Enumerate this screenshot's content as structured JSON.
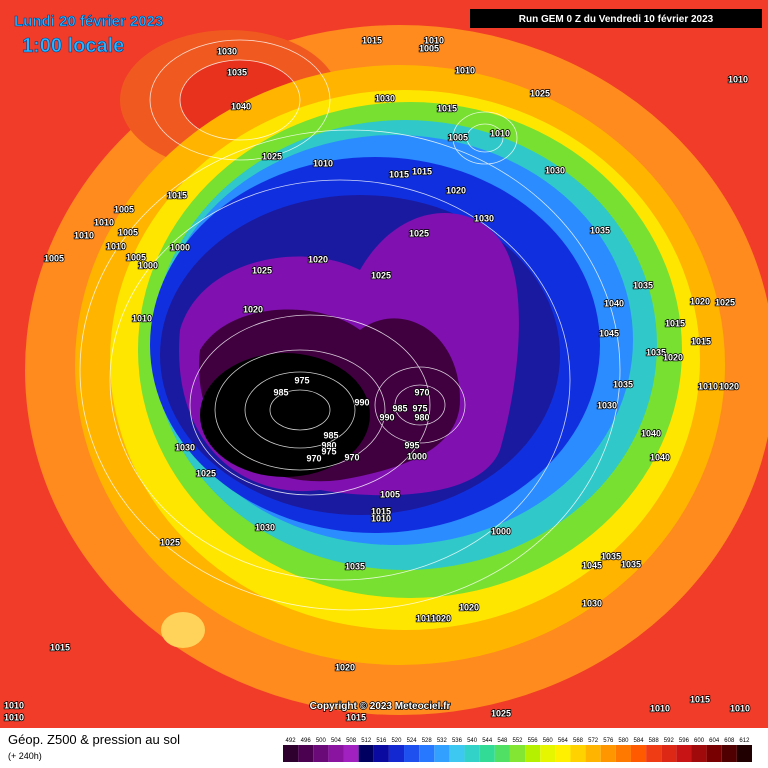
{
  "header": {
    "date": "Lundi 20 février 2023",
    "time": "1:00 locale",
    "run": "Run GEM 0 Z du Vendredi 10 février 2023"
  },
  "footer": {
    "title": "Géop. Z500 & pression au sol",
    "lead": "(+ 240h)",
    "copyright": "Copyright © 2023 Meteociel.fr"
  },
  "scale": {
    "values": [
      492,
      496,
      500,
      504,
      508,
      512,
      516,
      520,
      524,
      528,
      532,
      536,
      540,
      544,
      548,
      552,
      556,
      560,
      564,
      568,
      572,
      576,
      580,
      584,
      588,
      592,
      596,
      600,
      604,
      608,
      612
    ],
    "colors": [
      "#2d002d",
      "#4b0050",
      "#6a0a78",
      "#8a14a0",
      "#a020c0",
      "#000060",
      "#0a0aa0",
      "#1428d2",
      "#1e50f0",
      "#2878ff",
      "#32a0ff",
      "#3cc8f0",
      "#32d2c8",
      "#32dc96",
      "#50e164",
      "#82e632",
      "#b4f000",
      "#e6f500",
      "#fff000",
      "#ffd200",
      "#ffb400",
      "#ff9600",
      "#ff7800",
      "#ff5a00",
      "#f03c14",
      "#dc2814",
      "#c81414",
      "#a00a0a",
      "#780000",
      "#500000",
      "#200000"
    ]
  },
  "isobar_labels": [
    "1030",
    "1035",
    "1040",
    "1015",
    "1010",
    "1005",
    "1010",
    "1025",
    "1010",
    "1030",
    "1015",
    "1005",
    "1010",
    "1025",
    "1010",
    "1015",
    "1015",
    "1015",
    "1005",
    "1020",
    "1030",
    "1010",
    "1030",
    "1035",
    "1010",
    "1005",
    "1025",
    "1010",
    "1000",
    "1005",
    "1000",
    "1005",
    "1020",
    "1025",
    "1025",
    "1035",
    "1040",
    "1020",
    "1025",
    "1020",
    "1010",
    "1015",
    "1045",
    "1015",
    "1035",
    "1020",
    "975",
    "1035",
    "1010",
    "1020",
    "985",
    "970",
    "990",
    "1030",
    "985",
    "975",
    "990",
    "980",
    "1040",
    "985",
    "980",
    "995",
    "1030",
    "975",
    "970",
    "970",
    "1000",
    "1040",
    "1025",
    "1005",
    "1015",
    "1010",
    "1030",
    "1000",
    "1025",
    "1035",
    "1045",
    "1035",
    "1035",
    "1030",
    "1020",
    "1010",
    "1020",
    "1015",
    "1020",
    "1015",
    "1010",
    "1010",
    "1010",
    "1015",
    "1010",
    "1025"
  ]
}
